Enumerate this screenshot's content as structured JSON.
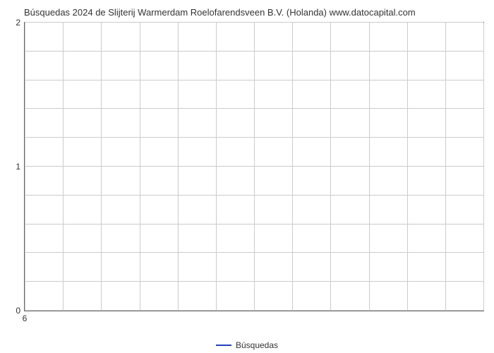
{
  "chart": {
    "type": "line",
    "title": "Búsquedas 2024 de Slijterij Warmerdam Roelofarendsveen B.V. (Holanda) www.datocapital.com",
    "title_fontsize": 13,
    "background_color": "#ffffff",
    "border_color": "#666666",
    "grid_color": "#cccccc",
    "minor_grid_color": "#cccccc",
    "text_color": "#333333",
    "x": {
      "ticks": [
        6
      ],
      "min": 6,
      "max": 6,
      "minor_steps": 12
    },
    "y": {
      "ticks": [
        0,
        1,
        2
      ],
      "min": 0,
      "max": 2,
      "minor_steps": 10
    },
    "series": [
      {
        "name": "Búsquedas",
        "color": "#2042bd",
        "line_width": 2,
        "values": []
      }
    ],
    "legend": {
      "label": "Búsquedas",
      "swatch_color": "#2042bd",
      "position": "bottom-center"
    }
  }
}
